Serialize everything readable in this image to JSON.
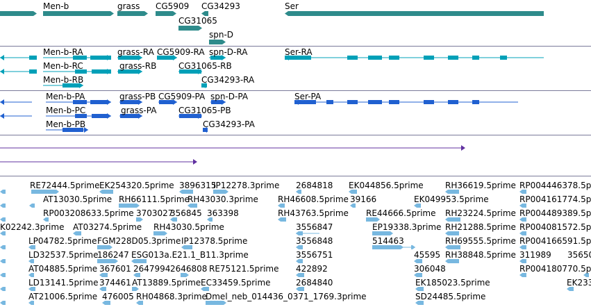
{
  "colors": {
    "gene": "#2e8b8b",
    "mrna_cyan": "#00a0b8",
    "mrna_blue": "#2060d0",
    "est": "#78b8e0",
    "purple": "#6030a0",
    "separator": "#7a7a9a"
  },
  "genes": [
    "Men-b",
    "grass",
    "CG5909",
    "CG34293",
    "CG31065",
    "spn-D",
    "Ser"
  ],
  "transcripts_a": [
    "Men-b-RA",
    "Men-b-RC",
    "Men-b-RB",
    "grass-RA",
    "CG5909-RA",
    "spn-D-RA",
    "grass-RB",
    "CG31065-RB",
    "CG34293-RA",
    "Ser-RA"
  ],
  "transcripts_b": [
    "Men-b-PA",
    "Men-b-PC",
    "Men-b-PB",
    "grass-PB",
    "CG5909-PA",
    "spn-D-PA",
    "grass-PA",
    "CG31065-PB",
    "CG34293-PA",
    "Ser-PA"
  ],
  "ests": [
    [
      "RE72444.5prime",
      "EK254320.5prime",
      "3896315",
      "IP12278.3prime",
      "2684818",
      "EK044856.5prime",
      "RH36619.5prime",
      "RP004446378.5prime"
    ],
    [
      "AT13030.5prime",
      "RH66111.5prime",
      "RH43030.3prime",
      "RH46608.5prime",
      "39166",
      "EK049953.5prime",
      "RP004161774.5prime"
    ],
    [
      "RP003208633.5prime",
      "3703027",
      "356845",
      "363398",
      "RH43763.5prime",
      "RE44666.5prime",
      "RH23224.5prime",
      "RP004489389.5prime"
    ],
    [
      "K02242.3prime",
      "AT03274.5prime",
      "RH43030.5prime",
      "3556847",
      "EP19338.3prime",
      "RH21288.5prime",
      "RP004081572.5prime"
    ],
    [
      "LP04782.5prime",
      "FGM228D05.3prime",
      "IP12378.5prime",
      "3556848",
      "514463",
      "RH69555.5prime",
      "RP004166591.5prime"
    ],
    [
      "LD32537.5prime",
      "186247",
      "ESG013a.E21.1_B11.3prime",
      "3556751",
      "45595",
      "RH38848.5prime",
      "311989",
      "35650"
    ],
    [
      "AT04885.5prime",
      "367601",
      "2647994",
      "2646808",
      "RE75121.5prime",
      "422892",
      "306048",
      "RP004180770.5prime"
    ],
    [
      "LD13141.5prime",
      "374461",
      "AT13889.5prime",
      "EC33459.5prime",
      "2684840",
      "EK185023.5prime",
      "EK233"
    ],
    [
      "AT21006.5prime",
      "476005",
      "RH04868.3prime",
      "Dmel_neb_014436_0371_1769.3prime",
      "SD24485.5prime"
    ]
  ]
}
